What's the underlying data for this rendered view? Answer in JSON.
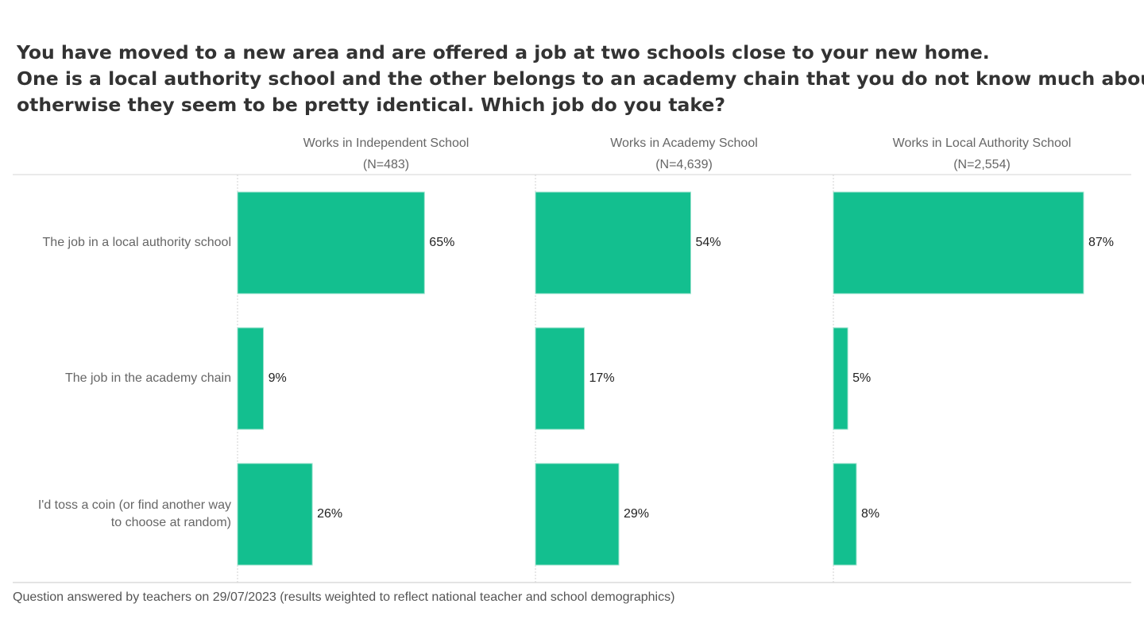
{
  "title": {
    "line1": "You have moved to a new area and are offered a job at two schools close to your new home.",
    "line2": "One is a local authority school and the other belongs to an academy chain that you do not know much about -",
    "line3": "otherwise they seem to be pretty identical. Which job do you take?"
  },
  "footer": "Question answered by  teachers on 29/07/2023 (results weighted to reflect national teacher and school demographics)",
  "colors": {
    "bar": "#13BF8F",
    "text": "#333333",
    "muted": "#666666",
    "grid": "#cccccc"
  },
  "chart_data": {
    "type": "bar",
    "orientation": "horizontal",
    "categories": [
      "The job in a local authority school",
      "The job in the academy chain",
      "I'd toss a coin (or find another way to choose at random)"
    ],
    "category_lines": [
      [
        "The job in a local authority school"
      ],
      [
        "The job in the academy chain"
      ],
      [
        "I'd toss a coin (or find another way",
        "to choose at random)"
      ]
    ],
    "panels": [
      {
        "name": "Works in Independent School",
        "n_label": "(N=483)",
        "values": [
          65,
          9,
          26
        ],
        "labels": [
          "65%",
          "9%",
          "26%"
        ]
      },
      {
        "name": "Works in Academy School",
        "n_label": "(N=4,639)",
        "values": [
          54,
          17,
          29
        ],
        "labels": [
          "54%",
          "17%",
          "29%"
        ]
      },
      {
        "name": "Works in Local Authority School",
        "n_label": "(N=2,554)",
        "values": [
          87,
          5,
          8
        ],
        "labels": [
          "87%",
          "5%",
          "8%"
        ]
      }
    ],
    "xlim": [
      0,
      100
    ],
    "unit": "%"
  }
}
